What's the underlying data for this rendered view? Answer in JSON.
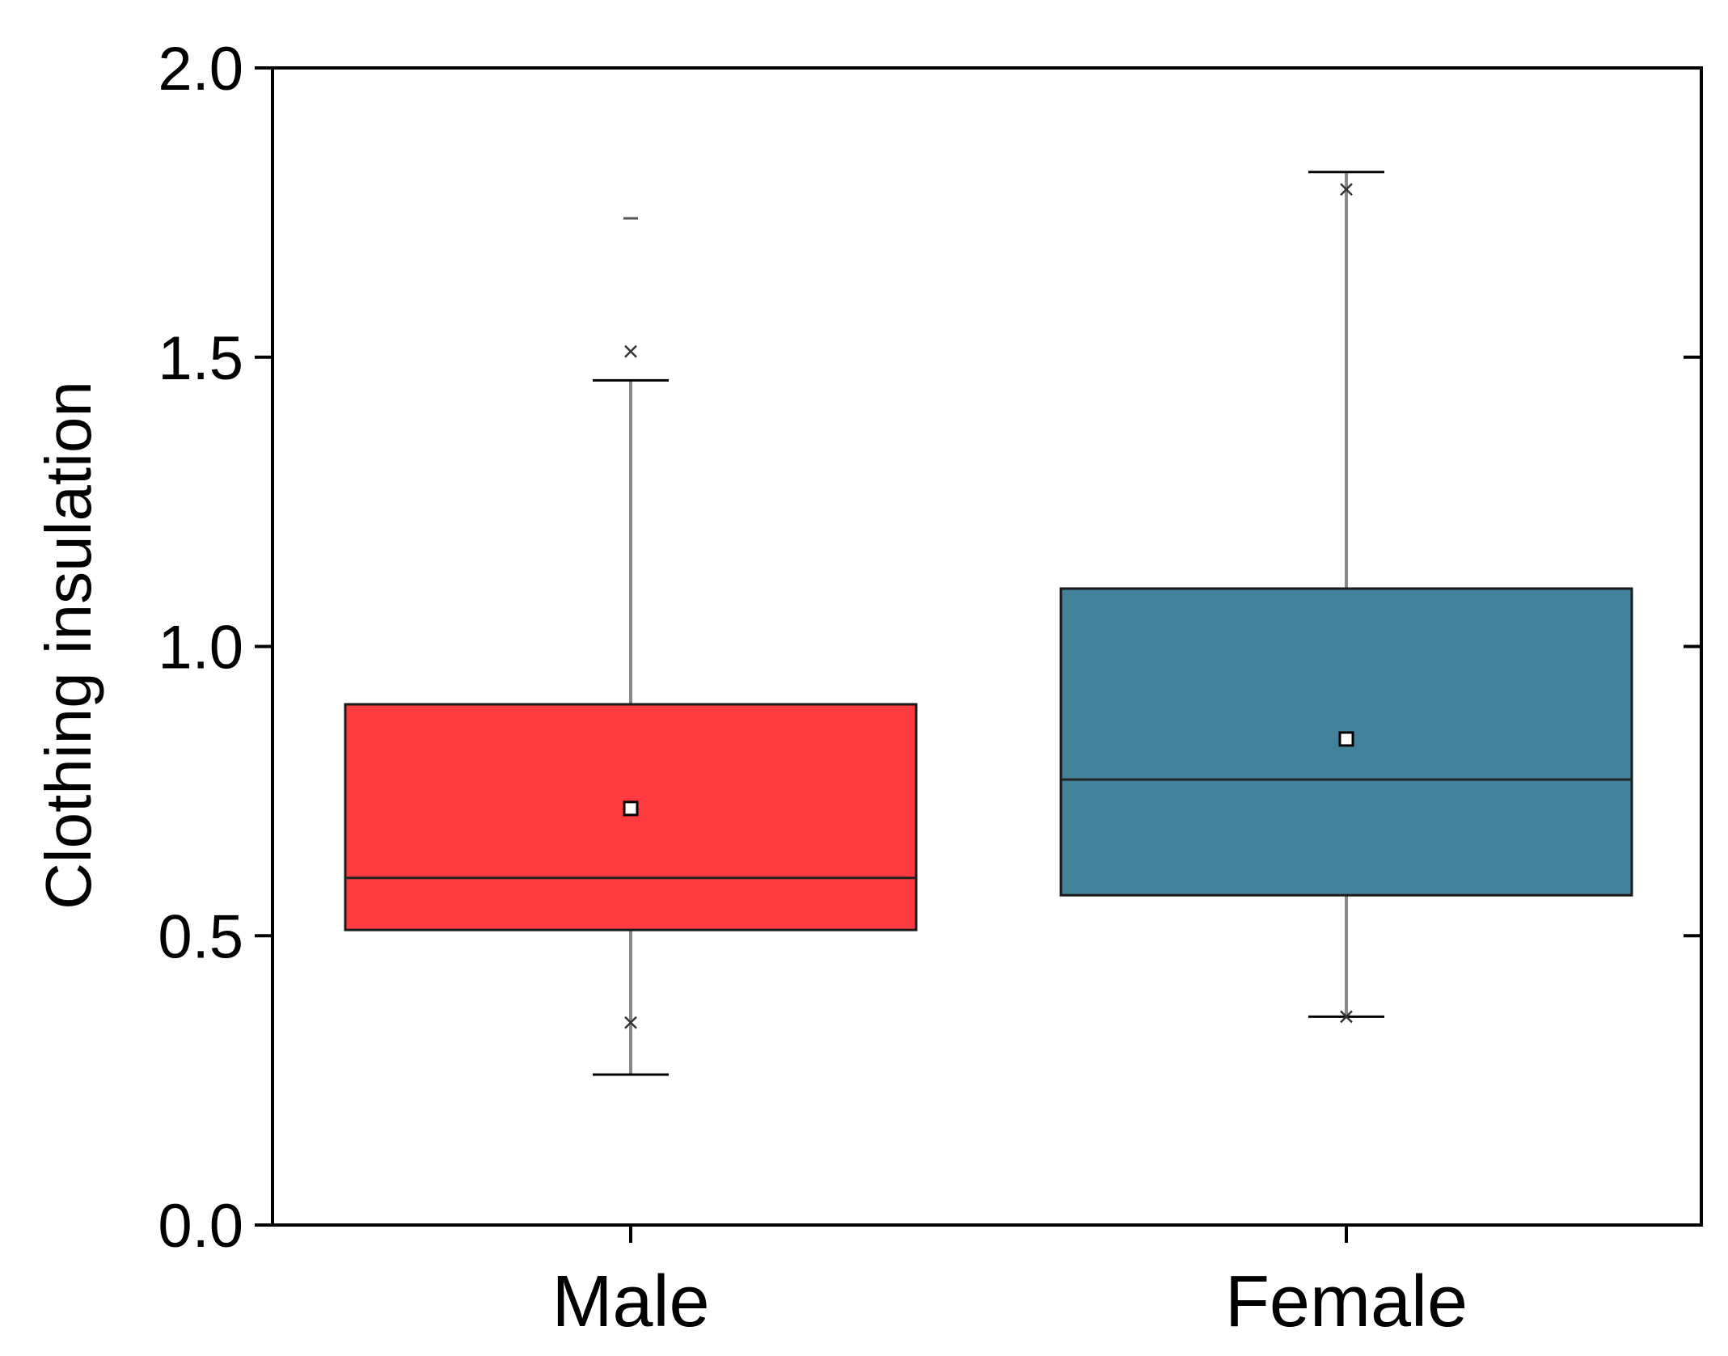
{
  "chart_data": {
    "type": "box",
    "title": "",
    "xlabel": "",
    "ylabel": "Clothing insulation",
    "ylim": [
      0,
      2.0
    ],
    "yticks": [
      "0.0",
      "0.5",
      "1.0",
      "1.5",
      "2.0"
    ],
    "ytick_values": [
      0,
      0.5,
      1.0,
      1.5,
      2.0
    ],
    "categories": [
      "Male",
      "Female"
    ],
    "boxes": [
      {
        "name": "Male",
        "color": "#ff3b3f",
        "whisker_low": 0.26,
        "q1": 0.51,
        "median": 0.6,
        "q3": 0.9,
        "whisker_high": 1.46,
        "mean": 0.72,
        "min_marker": 0.35,
        "max_marker": 1.51,
        "outliers": [
          1.74
        ]
      },
      {
        "name": "Female",
        "color": "#42829b",
        "whisker_low": 0.36,
        "q1": 0.57,
        "median": 0.77,
        "q3": 1.1,
        "whisker_high": 1.82,
        "mean": 0.84,
        "min_marker": 0.36,
        "max_marker": 1.79,
        "outliers": []
      }
    ],
    "grid": false,
    "legend": "none"
  }
}
